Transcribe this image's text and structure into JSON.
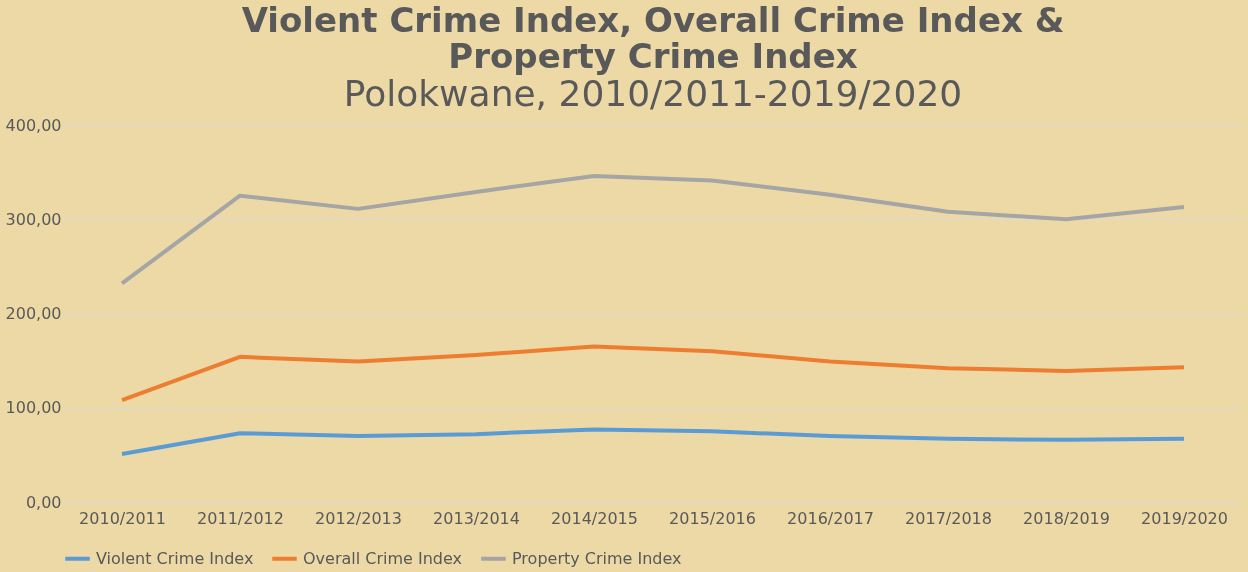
{
  "chart_data": {
    "type": "line",
    "title": [
      "Violent Crime Index, Overall Crime Index &",
      "Property Crime Index"
    ],
    "subtitle": "Polokwane, 2010/2011-2019/2020",
    "categories": [
      "2010/2011",
      "2011/2012",
      "2012/2013",
      "2013/2014",
      "2014/2015",
      "2015/2016",
      "2016/2017",
      "2017/2018",
      "2018/2019",
      "2019/2020"
    ],
    "series": [
      {
        "name": "Violent Crime Index",
        "color": "#5b9bd5",
        "values": [
          51,
          73,
          70,
          72,
          77,
          75,
          70,
          67,
          66,
          67
        ]
      },
      {
        "name": "Overall Crime Index",
        "color": "#ed7d31",
        "values": [
          108,
          154,
          149,
          156,
          165,
          160,
          149,
          142,
          139,
          143
        ]
      },
      {
        "name": "Property Crime Index",
        "color": "#a5a5a5",
        "values": [
          232,
          325,
          311,
          329,
          346,
          341,
          326,
          308,
          300,
          313
        ]
      }
    ],
    "ylim": [
      0,
      400
    ],
    "yticks": [
      {
        "value": 0,
        "label": "0,00"
      },
      {
        "value": 100,
        "label": "100,00"
      },
      {
        "value": 200,
        "label": "200,00"
      },
      {
        "value": 300,
        "label": "300,00"
      },
      {
        "value": 400,
        "label": "400,00"
      }
    ],
    "grid": "y",
    "legend": "bottom",
    "marker": "none",
    "line_style": "solid"
  }
}
